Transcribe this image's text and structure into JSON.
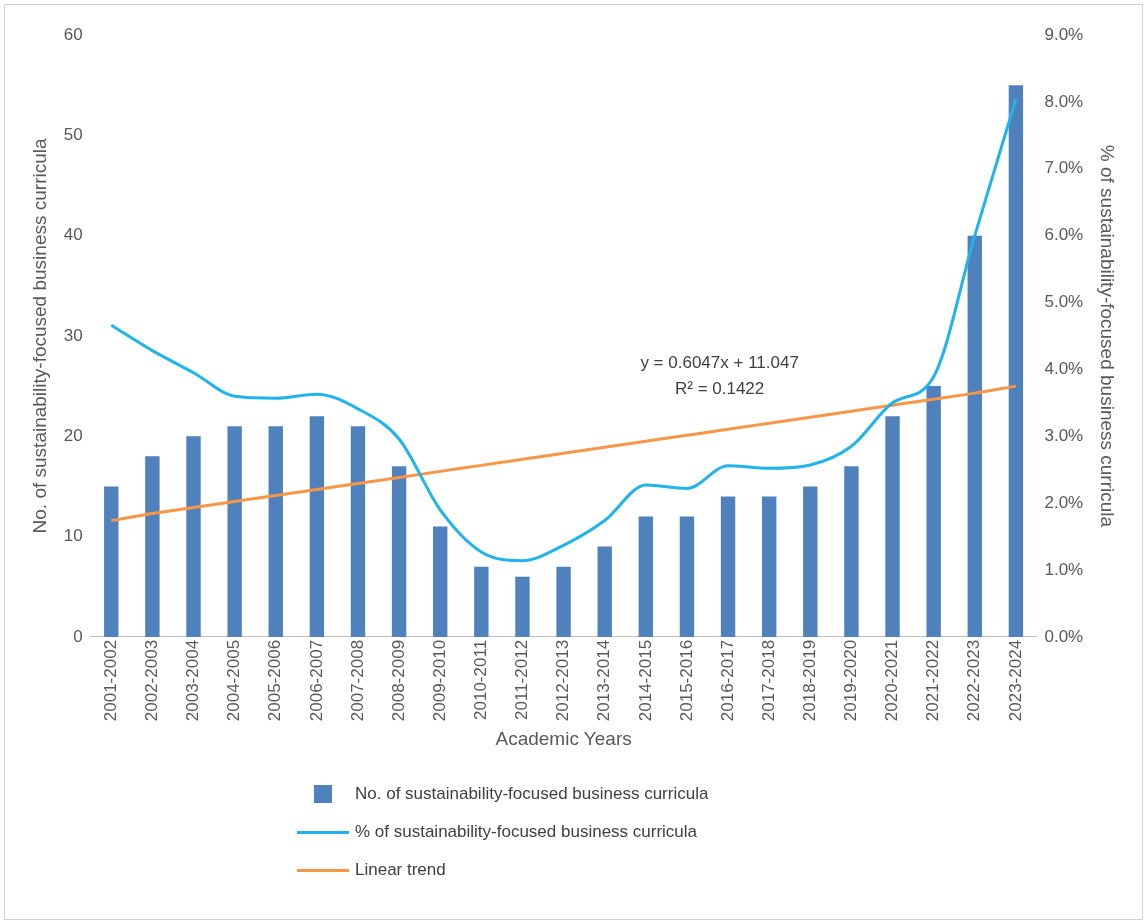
{
  "chart_data": {
    "type": "bar",
    "xlabel": "Academic Years",
    "ylabel": "No. of sustainability-focused business curricula",
    "y2label": "% of sustainability-focused business curricula",
    "categories": [
      "2001-2002",
      "2002-2003",
      "2003-2004",
      "2004-2005",
      "2005-2006",
      "2006-2007",
      "2007-2008",
      "2008-2009",
      "2009-2010",
      "2010-2011",
      "2011-2012",
      "2012-2013",
      "2013-2014",
      "2014-2015",
      "2015-2016",
      "2016-2017",
      "2017-2018",
      "2018-2019",
      "2019-2020",
      "2020-2021",
      "2021-2022",
      "2022-2023",
      "2023-2024"
    ],
    "series": [
      {
        "name": "No. of sustainability-focused business curricula",
        "color": "#4f81bd",
        "values": [
          15,
          18,
          20,
          21,
          21,
          22,
          21,
          17,
          11,
          7,
          6,
          7,
          9,
          12,
          12,
          14,
          14,
          15,
          17,
          22,
          25,
          40,
          55
        ]
      },
      {
        "name": "% of sustainability-focused business curricula",
        "type": "line",
        "axis": "y2",
        "color": "#1fb4ec",
        "values": [
          4.66,
          4.28,
          3.95,
          3.6,
          3.57,
          3.63,
          3.41,
          2.96,
          1.9,
          1.27,
          1.14,
          1.37,
          1.74,
          2.27,
          2.22,
          2.56,
          2.52,
          2.57,
          2.85,
          3.5,
          3.89,
          6.0,
          8.04
        ]
      },
      {
        "name": "Linear trend",
        "type": "line",
        "color": "#f79646",
        "values": [
          11.6,
          12.3,
          12.9,
          13.5,
          14.1,
          14.7,
          15.3,
          15.9,
          16.5,
          17.1,
          17.7,
          18.3,
          18.9,
          19.5,
          20.1,
          20.7,
          21.3,
          21.9,
          22.5,
          23.1,
          23.7,
          24.3,
          25.0
        ]
      }
    ],
    "ylim": [
      0,
      60
    ],
    "yticks": [
      0,
      10,
      20,
      30,
      40,
      50,
      60
    ],
    "y2lim": [
      0,
      9
    ],
    "y2ticks": [
      {
        "value": 0,
        "label": "0.0%"
      },
      {
        "value": 1,
        "label": "1.0%"
      },
      {
        "value": 2,
        "label": "2.0%"
      },
      {
        "value": 3,
        "label": "3.0%"
      },
      {
        "value": 4,
        "label": "4.0%"
      },
      {
        "value": 5,
        "label": "5.0%"
      },
      {
        "value": 6,
        "label": "6.0%"
      },
      {
        "value": 7,
        "label": "7.0%"
      },
      {
        "value": 8,
        "label": "8.0%"
      },
      {
        "value": 9,
        "label": "9.0%"
      }
    ],
    "annotations": [
      "y = 0.6047x + 11.047",
      "R² = 0.1422"
    ],
    "grid": false,
    "legend": "bottom",
    "marker": "none",
    "line_style": "solid"
  }
}
